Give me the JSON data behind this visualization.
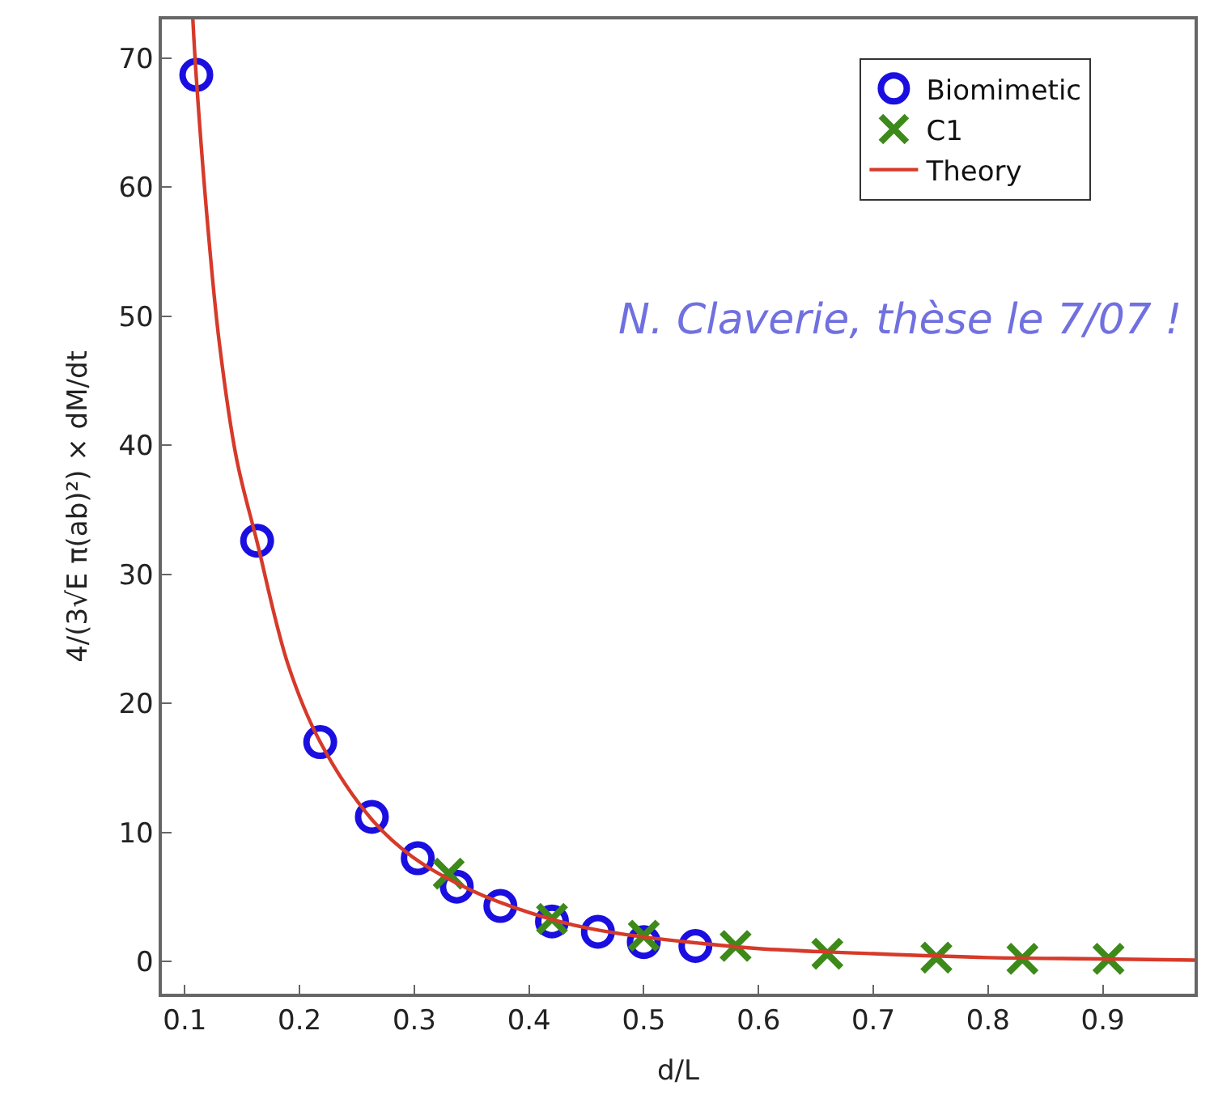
{
  "chart_data": {
    "type": "scatter",
    "xlabel": "d/L",
    "ylabel": "4/(3√E π(ab)²) × dM/dt",
    "xlim": [
      0.08,
      0.98
    ],
    "ylim": [
      -2.5,
      73
    ],
    "xticks": [
      0.1,
      0.2,
      0.3,
      0.4,
      0.5,
      0.6,
      0.7,
      0.8,
      0.9
    ],
    "yticks": [
      0,
      10,
      20,
      30,
      40,
      50,
      60,
      70
    ],
    "legend": "top right",
    "annotations": [
      "N. Claverie, thèse le 7/07 !"
    ],
    "series": [
      {
        "name": "Biomimetic",
        "color": "#1a0fe0",
        "marker": "circle",
        "x": [
          0.11,
          0.163,
          0.218,
          0.263,
          0.303,
          0.337,
          0.375,
          0.42,
          0.46,
          0.5,
          0.545
        ],
        "values": [
          68.7,
          32.6,
          17,
          11.2,
          8,
          5.8,
          4.3,
          3.1,
          2.3,
          1.5,
          1.2
        ]
      },
      {
        "name": "C1",
        "color": "#3d8a1a",
        "marker": "cross",
        "x": [
          0.33,
          0.42,
          0.5,
          0.58,
          0.66,
          0.755,
          0.83,
          0.905
        ],
        "values": [
          6.8,
          3.3,
          2.0,
          1.2,
          0.6,
          0.3,
          0.2,
          0.2
        ]
      },
      {
        "name": "Theory",
        "color": "#d63a2a",
        "type": "line",
        "marker": "none",
        "line_style": "solid",
        "x": [
          0.107,
          0.11,
          0.12,
          0.13,
          0.145,
          0.163,
          0.19,
          0.218,
          0.263,
          0.3,
          0.35,
          0.4,
          0.45,
          0.5,
          0.55,
          0.6,
          0.7,
          0.8,
          0.9,
          0.98
        ],
        "values": [
          73,
          68.5,
          57,
          48,
          39,
          32.5,
          23,
          17,
          11,
          8,
          5.5,
          3.8,
          2.6,
          1.9,
          1.4,
          1.0,
          0.6,
          0.3,
          0.2,
          0.1
        ]
      }
    ]
  }
}
